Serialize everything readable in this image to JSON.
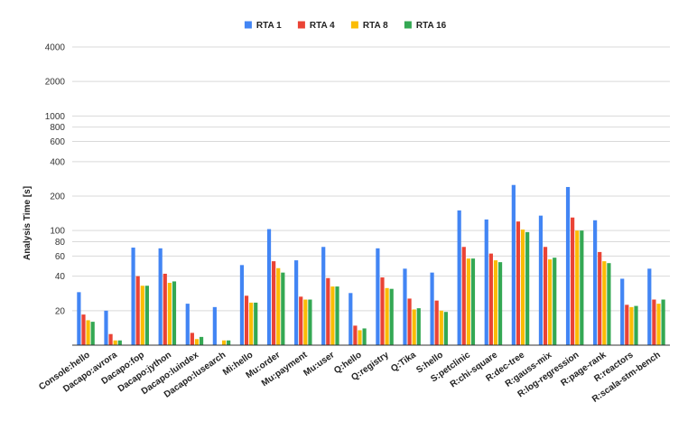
{
  "chart_data": {
    "type": "bar",
    "title": "",
    "xlabel": "",
    "ylabel": "Analysis Time [s]",
    "yscale": "log",
    "ylim": [
      10,
      4000
    ],
    "yticks": [
      20,
      40,
      60,
      80,
      100,
      200,
      400,
      600,
      800,
      1000,
      2000,
      4000
    ],
    "grid": "horizontal",
    "legend_position": "top",
    "categories": [
      "Console:hello",
      "Dacapo:avrora",
      "Dacapo:fop",
      "Dacapo:jython",
      "Dacapo:luindex",
      "Dacapo:lusearch",
      "Mi:hello",
      "Mu:order",
      "Mu:payment",
      "Mu:user",
      "Q:hello",
      "Q:registry",
      "Q:Tika",
      "S:hello",
      "S:petclinic",
      "R:chi-square",
      "R:dec-tree",
      "R:gauss-mix",
      "R:log-regression",
      "R:page-rank",
      "R:reactors",
      "R:scala-stm-bench"
    ],
    "series": [
      {
        "name": "RTA 1",
        "color": "#4285F4",
        "values": [
          29,
          20,
          71,
          70,
          23,
          21.5,
          50,
          103,
          55,
          72,
          28.5,
          70,
          46.5,
          43,
          150,
          125,
          250,
          135,
          240,
          123,
          38,
          46.5
        ]
      },
      {
        "name": "RTA 4",
        "color": "#EA4335",
        "values": [
          18.5,
          12.5,
          40,
          42,
          12.8,
          9,
          27,
          54,
          26.5,
          38.5,
          14.8,
          39,
          25.5,
          24.5,
          72,
          63,
          120,
          72,
          130,
          65,
          22.5,
          25
        ]
      },
      {
        "name": "RTA 8",
        "color": "#FBBC04",
        "values": [
          16.5,
          11,
          33,
          35,
          11.3,
          11,
          23.5,
          47,
          25,
          32.5,
          13.5,
          31.5,
          20.5,
          20,
          57,
          55,
          102,
          56,
          100,
          54,
          21.5,
          23
        ]
      },
      {
        "name": "RTA 16",
        "color": "#34A853",
        "values": [
          16,
          11,
          33,
          36,
          11.8,
          11,
          23.5,
          43,
          25,
          32.5,
          14,
          31,
          21,
          19.5,
          57,
          53,
          97,
          58,
          100,
          52,
          22,
          25
        ]
      }
    ]
  }
}
